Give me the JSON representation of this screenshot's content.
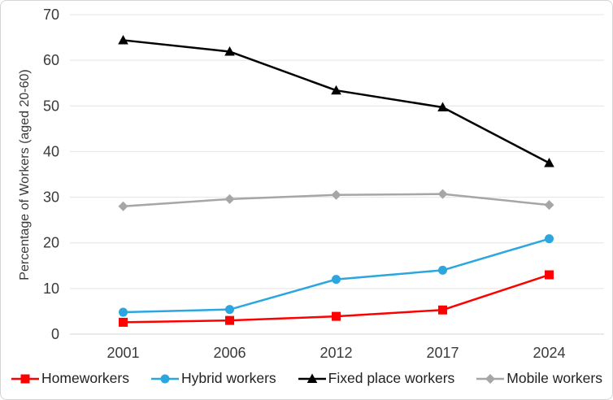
{
  "chart_data": {
    "type": "line",
    "title": "",
    "xlabel": "",
    "ylabel": "Percentage of Workers (aged 20-60)",
    "categories": [
      "2001",
      "2006",
      "2012",
      "2017",
      "2024"
    ],
    "ylim": [
      0,
      70
    ],
    "yticks": [
      0,
      10,
      20,
      30,
      40,
      50,
      60,
      70
    ],
    "grid": "horizontal-only",
    "legend_position": "bottom",
    "axis_text_color": "#3a3a3a",
    "gridline_color": "#e4e4e4",
    "zero_line_color": "#d6d6d6",
    "series": [
      {
        "name": "Homeworkers",
        "marker": "square",
        "color": "#ff0000",
        "values": [
          2.6,
          3.0,
          3.9,
          5.3,
          13.0
        ]
      },
      {
        "name": "Hybrid workers",
        "marker": "circle",
        "color": "#2ba6de",
        "values": [
          4.8,
          5.4,
          12.0,
          14.0,
          20.9
        ]
      },
      {
        "name": "Fixed place workers",
        "marker": "triangle",
        "color": "#000000",
        "values": [
          64.4,
          61.9,
          53.4,
          49.7,
          37.5
        ]
      },
      {
        "name": "Mobile workers",
        "marker": "diamond",
        "color": "#a6a6a6",
        "values": [
          28.0,
          29.6,
          30.5,
          30.7,
          28.3
        ]
      }
    ]
  }
}
